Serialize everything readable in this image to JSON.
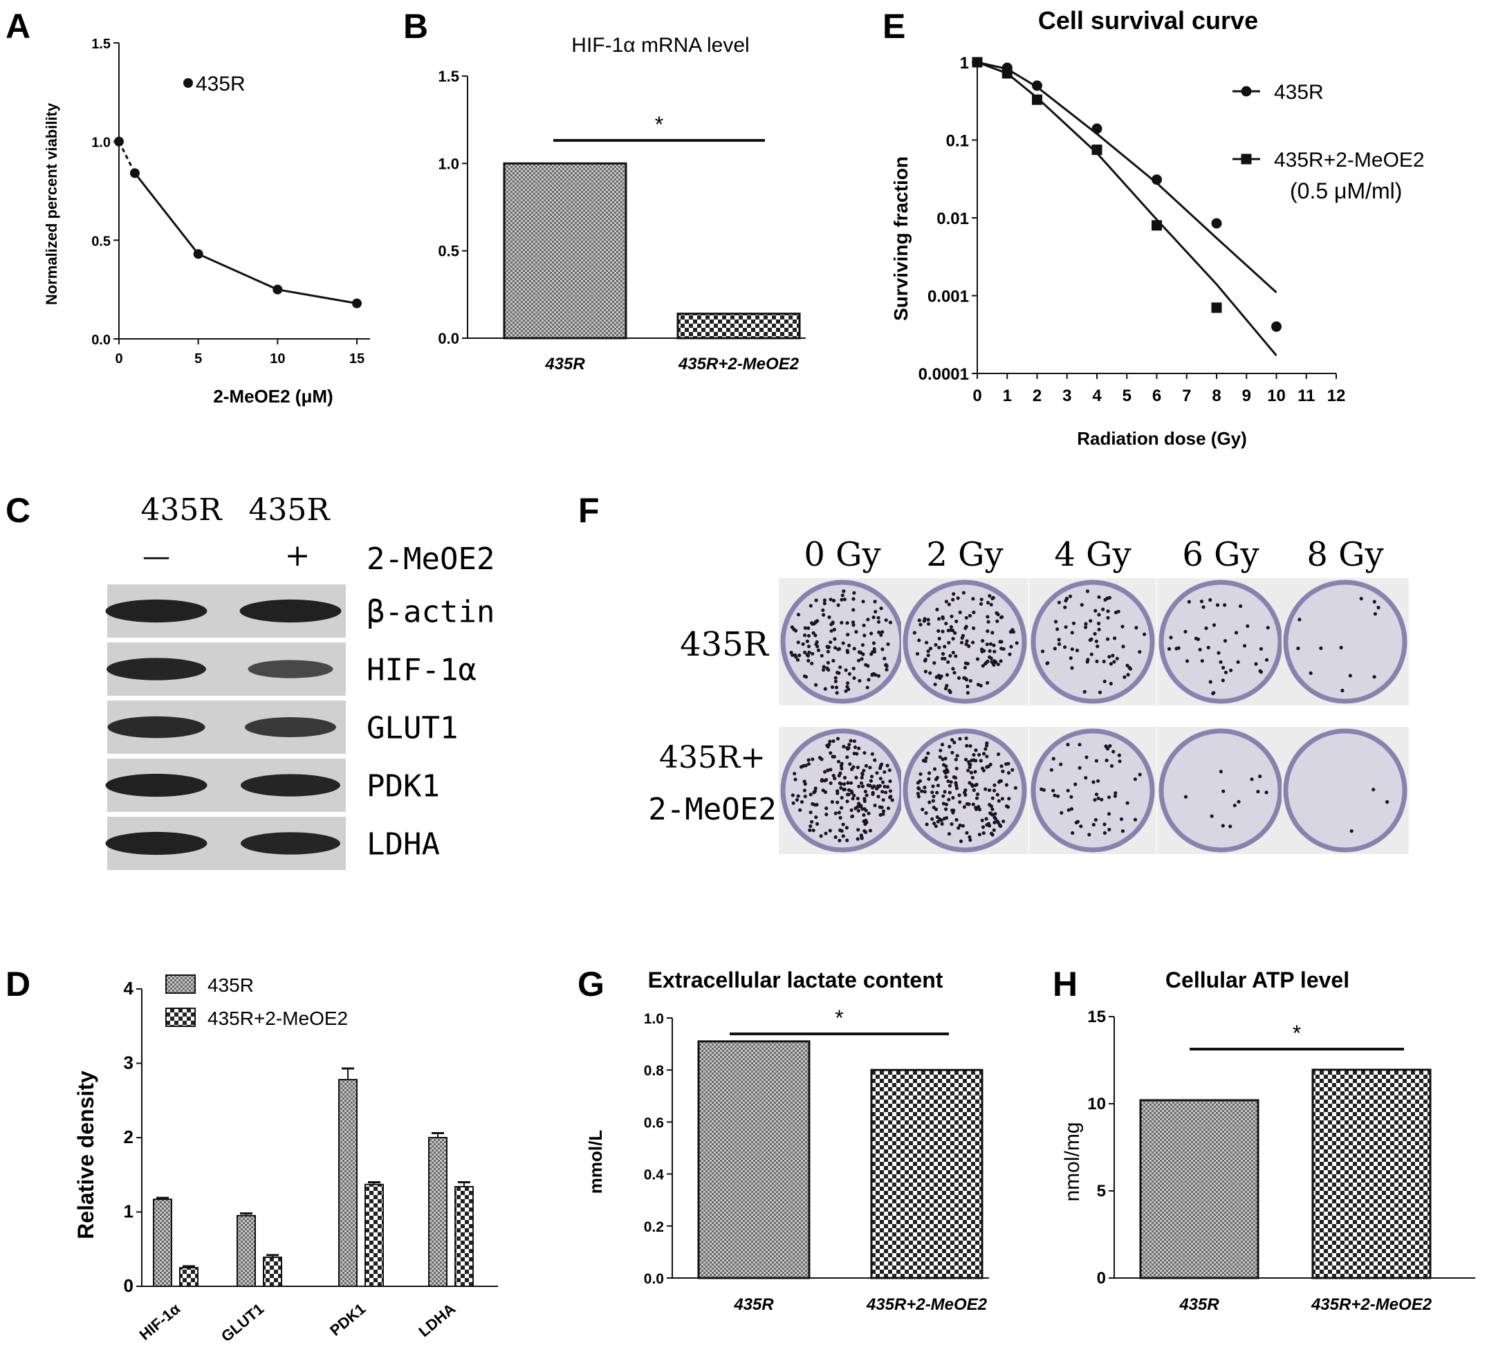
{
  "panel_letters": {
    "A": "A",
    "B": "B",
    "C": "C",
    "D": "D",
    "E": "E",
    "F": "F",
    "G": "G",
    "H": "H"
  },
  "colors": {
    "axis": "#111111",
    "bar_fill_light": "#c8c8c8",
    "bar_fill_dark": "#6a6a6a",
    "blot_bg": "#d0d0d0",
    "blot_band": "#1b1b1b",
    "plate_rim": "#8a82ad",
    "plate_bg": "#d9d6e4",
    "colony": "#1a1423"
  },
  "chart_data": [
    {
      "panel": "A",
      "type": "line",
      "title": "",
      "xlabel": "2-MeOE2 (μM)",
      "ylabel": "Normalized percent viability",
      "xlim": [
        0,
        15
      ],
      "ylim": [
        0,
        1.5
      ],
      "xticks": [
        "0",
        "5",
        "10",
        "15"
      ],
      "yticks": [
        "0.0",
        "0.5",
        "1.0",
        "1.5"
      ],
      "legend": [
        "435R"
      ],
      "legend_position": "top-center",
      "series": [
        {
          "name": "435R",
          "x": [
            0,
            1,
            5,
            10,
            15
          ],
          "y": [
            1.0,
            0.84,
            0.43,
            0.25,
            0.18
          ]
        }
      ]
    },
    {
      "panel": "B",
      "type": "bar",
      "title": "HIF-1α  mRNA level",
      "categories": [
        "435R",
        "435R+2-MeOE2"
      ],
      "values": [
        1.0,
        0.14
      ],
      "ylim": [
        0,
        1.5
      ],
      "yticks": [
        "0.0",
        "0.5",
        "1.0",
        "1.5"
      ],
      "significance": "*"
    },
    {
      "panel": "D",
      "type": "bar",
      "title": "",
      "ylabel": "Relative density",
      "categories": [
        "HIF-1α",
        "GLUT1",
        "PDK1",
        "LDHA"
      ],
      "ylim": [
        0,
        4
      ],
      "yticks": [
        "0",
        "1",
        "2",
        "3",
        "4"
      ],
      "legend_position": "top-left",
      "series": [
        {
          "name": "435R",
          "values": [
            1.17,
            0.95,
            2.78,
            2.0
          ],
          "errors": [
            0.02,
            0.03,
            0.15,
            0.06
          ]
        },
        {
          "name": "435R+2-MeOE2",
          "values": [
            0.25,
            0.39,
            1.37,
            1.34
          ],
          "errors": [
            0.02,
            0.03,
            0.03,
            0.06
          ]
        }
      ]
    },
    {
      "panel": "E",
      "type": "scatter",
      "title": "Cell survival curve",
      "xlabel": "Radiation dose (Gy)",
      "ylabel": "Surviving fraction",
      "xlim": [
        0,
        12
      ],
      "ylim": [
        0.0001,
        1
      ],
      "log_y": true,
      "xticks": [
        "0",
        "1",
        "2",
        "3",
        "4",
        "5",
        "6",
        "7",
        "8",
        "9",
        "10",
        "11",
        "12"
      ],
      "yticks": [
        "0.0001",
        "0.001",
        "0.01",
        "0.1",
        "1"
      ],
      "legend_position": "top-right",
      "series": [
        {
          "name": "435R",
          "marker": "circle",
          "x": [
            0,
            1,
            2,
            4,
            6,
            8,
            10
          ],
          "y": [
            1,
            0.85,
            0.5,
            0.14,
            0.031,
            0.0085,
            0.0004
          ]
        },
        {
          "name": "435R+2-MeOE2",
          "marker": "square",
          "x": [
            0,
            1,
            2,
            4,
            6,
            8
          ],
          "y": [
            1,
            0.72,
            0.33,
            0.075,
            0.008,
            0.0007
          ]
        }
      ],
      "legend_note": "(0.5 μM/ml)"
    },
    {
      "panel": "G",
      "type": "bar",
      "title": "Extracellular lactate content",
      "ylabel": "mmol/L",
      "categories": [
        "435R",
        "435R+2-MeOE2"
      ],
      "values": [
        0.91,
        0.8
      ],
      "ylim": [
        0,
        1.0
      ],
      "yticks": [
        "0.0",
        "0.2",
        "0.4",
        "0.6",
        "0.8",
        "1.0"
      ],
      "significance": "*"
    },
    {
      "panel": "H",
      "type": "bar",
      "title": "Cellular ATP level",
      "ylabel": "nmol/mg",
      "categories": [
        "435R",
        "435R+2-MeOE2"
      ],
      "values": [
        10.2,
        11.95
      ],
      "ylim": [
        0,
        15
      ],
      "yticks": [
        "0",
        "5",
        "10",
        "15"
      ],
      "significance": "*"
    }
  ],
  "blot": {
    "lane_labels": [
      "435R",
      "435R"
    ],
    "treatment_signs": [
      "—",
      "+"
    ],
    "treatment_label": "2-MeOE2",
    "proteins": [
      {
        "name": "β-actin",
        "intensity": [
          0.95,
          0.95
        ]
      },
      {
        "name": "HIF-1α",
        "intensity": [
          0.9,
          0.55
        ]
      },
      {
        "name": "GLUT1",
        "intensity": [
          0.85,
          0.7
        ]
      },
      {
        "name": "PDK1",
        "intensity": [
          0.95,
          0.9
        ]
      },
      {
        "name": "LDHA",
        "intensity": [
          0.95,
          0.9
        ]
      }
    ]
  },
  "colony": {
    "doses": [
      "0 Gy",
      "2 Gy",
      "4 Gy",
      "6 Gy",
      "8 Gy"
    ],
    "rows": [
      {
        "label_lines": [
          "435R"
        ],
        "colony_counts": [
          150,
          140,
          70,
          40,
          12
        ]
      },
      {
        "label_lines": [
          "435R+",
          "2-MeOE2"
        ],
        "colony_counts": [
          200,
          190,
          55,
          12,
          3
        ]
      }
    ]
  }
}
